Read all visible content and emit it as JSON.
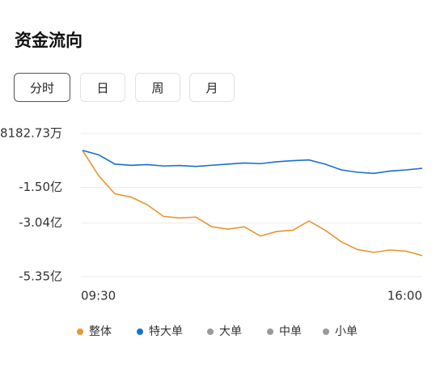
{
  "header": {
    "title": "资金流向"
  },
  "tabs": [
    {
      "label": "分时",
      "selected": true
    },
    {
      "label": "日",
      "selected": false
    },
    {
      "label": "周",
      "selected": false
    },
    {
      "label": "月",
      "selected": false
    }
  ],
  "chart_data": {
    "type": "line",
    "categories": [
      "09:30",
      null,
      null,
      null,
      null,
      null,
      null,
      null,
      null,
      null,
      null,
      null,
      null,
      null,
      null,
      null,
      null,
      null,
      null,
      null,
      null,
      "16:00"
    ],
    "series": [
      {
        "name": "整体",
        "color": "#e8962e",
        "visible": true,
        "values": [
          0.09,
          -1.0,
          -1.78,
          -1.92,
          -2.25,
          -2.75,
          -2.82,
          -2.78,
          -3.2,
          -3.3,
          -3.2,
          -3.6,
          -3.4,
          -3.35,
          -2.95,
          -3.35,
          -3.85,
          -4.18,
          -4.3,
          -4.2,
          -4.25,
          -4.44
        ]
      },
      {
        "name": "特大单",
        "color": "#1a6fd0",
        "visible": true,
        "values": [
          0.09,
          -0.1,
          -0.5,
          -0.55,
          -0.52,
          -0.58,
          -0.56,
          -0.6,
          -0.55,
          -0.5,
          -0.45,
          -0.48,
          -0.4,
          -0.35,
          -0.32,
          -0.5,
          -0.75,
          -0.85,
          -0.9,
          -0.8,
          -0.75,
          -0.68
        ]
      },
      {
        "name": "大单",
        "color": "#999999",
        "visible": false
      },
      {
        "name": "中单",
        "color": "#999999",
        "visible": false
      },
      {
        "name": "小单",
        "color": "#999999",
        "visible": false
      }
    ],
    "ylim": [
      -5.35,
      0.818273
    ],
    "yticks": [
      {
        "value": 0.818273,
        "label": "8182.73万"
      },
      {
        "value": -1.5,
        "label": "-1.50亿"
      },
      {
        "value": -3.04,
        "label": "-3.04亿"
      },
      {
        "value": -5.35,
        "label": "-5.35亿"
      }
    ],
    "grid": true
  }
}
